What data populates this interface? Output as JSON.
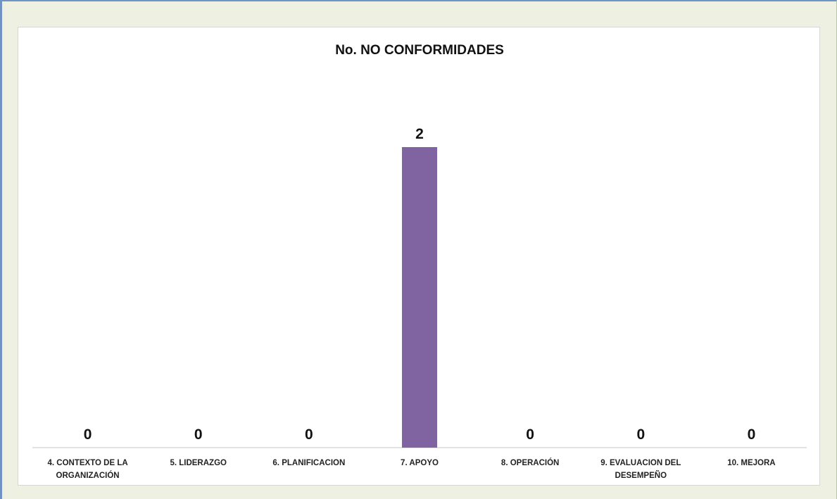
{
  "chart_data": {
    "type": "bar",
    "title": "No. NO CONFORMIDADES",
    "categories": [
      [
        "4. CONTEXTO DE LA",
        "ORGANIZACIÓN"
      ],
      [
        "5. LIDERAZGO"
      ],
      [
        "6. PLANIFICACION"
      ],
      [
        "7. APOYO"
      ],
      [
        "8. OPERACIÓN"
      ],
      [
        "9. EVALUACION DEL",
        "DESEMPEÑO"
      ],
      [
        "10. MEJORA"
      ]
    ],
    "values": [
      0,
      0,
      0,
      2,
      0,
      0,
      0
    ],
    "ylim": [
      0,
      2
    ],
    "xlabel": "",
    "ylabel": "",
    "grid": false,
    "legend": "none",
    "bar_color": "#8064a2",
    "axis_color": "#d9d9d9"
  }
}
